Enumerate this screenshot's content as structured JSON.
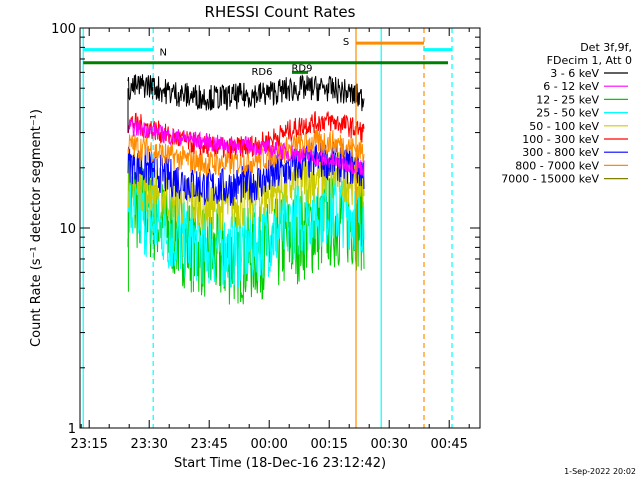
{
  "chart_data": {
    "type": "line",
    "title": "RHESSI Count Rates",
    "xlabel": "Start Time (18-Dec-16 23:12:42)",
    "ylabel": "Count Rate (s⁻¹ detector segment⁻¹)",
    "y_scale": "log",
    "ylim": [
      1,
      100
    ],
    "x_ticks": [
      "23:15",
      "23:30",
      "23:45",
      "00:00",
      "00:15",
      "00:30",
      "00:45"
    ],
    "y_ticks": [
      "1",
      "10",
      "100"
    ],
    "grid": false,
    "legend_position": "top-right",
    "legend_header": [
      "Det 3f,9f,",
      "FDecim 1, Att 0"
    ],
    "data_start_min": 12,
    "data_end_min": 71,
    "series": [
      {
        "name": "3 - 6 keV",
        "color": "#000000",
        "values": [
          50,
          52,
          48,
          46,
          45,
          45,
          46,
          47,
          49,
          50,
          50,
          48,
          44
        ],
        "noise": 0.06
      },
      {
        "name": "6 - 12 keV",
        "color": "#ff00ff",
        "values": [
          32,
          31,
          29,
          28,
          27,
          26,
          26,
          25,
          24,
          23,
          22,
          21,
          20
        ],
        "noise": 0.04
      },
      {
        "name": "12 - 25 keV",
        "color": "#00cc00",
        "values": [
          14,
          12,
          10,
          8.5,
          7.5,
          7,
          7.2,
          7.8,
          8.5,
          9.5,
          10.5,
          11,
          10.5
        ],
        "noise": 0.22
      },
      {
        "name": "25 - 50 keV",
        "color": "#00ffff",
        "values": [
          12,
          11,
          9.5,
          8.5,
          8,
          7.8,
          8,
          8.8,
          10,
          11.5,
          12.5,
          12.5,
          11.5
        ],
        "noise": 0.18
      },
      {
        "name": "50 - 100 keV",
        "color": "#cccc00",
        "values": [
          17,
          16,
          14.5,
          13.5,
          13,
          13,
          13.5,
          14.5,
          16,
          17.5,
          18.5,
          18,
          17
        ],
        "noise": 0.12
      },
      {
        "name": "100 - 300 keV",
        "color": "#ff0000",
        "values": [
          34,
          32,
          29,
          27,
          25.5,
          25,
          25.5,
          27,
          30,
          33,
          34.5,
          33,
          30
        ],
        "noise": 0.05
      },
      {
        "name": "300 - 800 keV",
        "color": "#0000ff",
        "values": [
          21,
          20,
          18,
          17,
          16,
          16,
          16.5,
          17.5,
          19.5,
          21.5,
          22,
          21,
          19
        ],
        "noise": 0.09
      },
      {
        "name": "800 - 7000 keV",
        "color": "#ff8c00",
        "values": [
          26,
          25,
          23,
          22,
          21,
          21,
          21.5,
          22.5,
          24.5,
          26.5,
          27,
          26,
          24
        ],
        "noise": 0.06
      },
      {
        "name": "7000 - 15000 keV",
        "color": "#808000",
        "values": [],
        "noise": 0
      }
    ],
    "annotations": [
      {
        "label": "N",
        "color": "#00ffff",
        "bar_y": 78,
        "x_start": 0.8,
        "x_end": 18.3
      },
      {
        "label": "S",
        "color": "#ff8c00",
        "bar_y": 84,
        "x_start": 69,
        "x_end": 86
      },
      {
        "label": "RD6",
        "color": "#008000",
        "bar_y": 67,
        "x_start": 0.8,
        "x_end": 92
      },
      {
        "label": "RD9",
        "color": "#008000",
        "bar_y": 60,
        "x_start": 53,
        "x_end": 57
      }
    ],
    "vertical_markers": [
      {
        "x": 0.8,
        "color": "#00ffff",
        "style": "solid"
      },
      {
        "x": 18.3,
        "color": "#00ffff",
        "style": "dashed"
      },
      {
        "x": 69,
        "color": "#ff8c00",
        "style": "solid"
      },
      {
        "x": 86,
        "color": "#ff8c00",
        "style": "dashed"
      },
      {
        "x": 75.3,
        "color": "#00ffff",
        "style": "solid"
      },
      {
        "x": 93,
        "color": "#00ffff",
        "style": "dashed"
      },
      {
        "x": 86,
        "color": "#00ffff",
        "bar_only": true,
        "bar_y": 78,
        "x_end": 93
      }
    ]
  },
  "footer": {
    "date_stamp": "1-Sep-2022 20:02"
  }
}
